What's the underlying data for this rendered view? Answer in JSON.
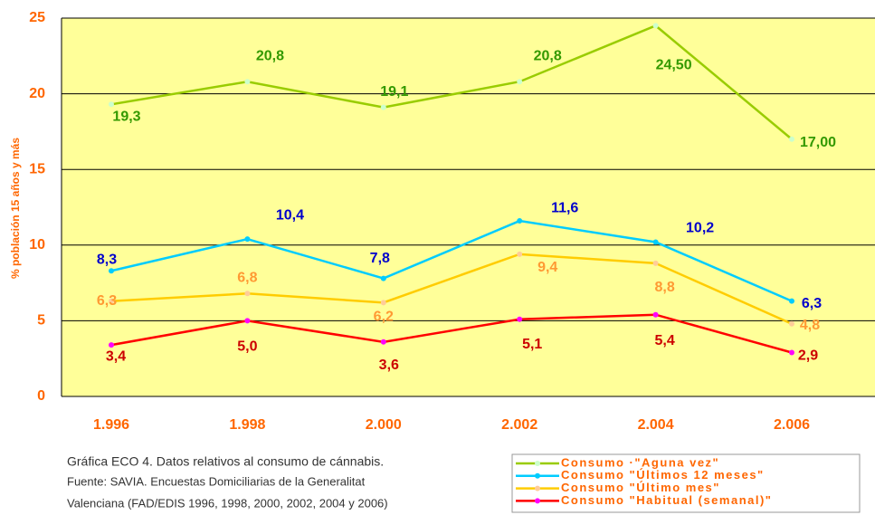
{
  "chart_data": {
    "type": "line",
    "y_label": "% población 15 años y más",
    "categories": [
      "1.996",
      "1.998",
      "2.000",
      "2.002",
      "2.004",
      "2.006"
    ],
    "ylim": [
      0,
      25
    ],
    "yticks": [
      0,
      5,
      10,
      15,
      20,
      25
    ],
    "grid": true,
    "background": "#ffff99",
    "series": [
      {
        "name": "Consumo ·\"Aguna vez\"",
        "color": "#99cc00",
        "marker_color": "#ccffcc",
        "label_color": "#339900",
        "values": [
          19.3,
          20.8,
          19.1,
          20.8,
          24.5,
          17
        ],
        "value_labels": [
          "19,3",
          "20,8",
          "19,1",
          "20,8",
          "24,50",
          "17,00"
        ]
      },
      {
        "name": "Consumo \"Últimos 12 meses\"",
        "color": "#00ccff",
        "marker_color": "#00ccff",
        "label_color": "#0000cc",
        "values": [
          8.3,
          10.4,
          7.8,
          11.6,
          10.2,
          6.3
        ],
        "value_labels": [
          "8,3",
          "10,4",
          "7,8",
          "11,6",
          "10,2",
          "6,3"
        ]
      },
      {
        "name": "Consumo \"Último mes\"",
        "color": "#ffcc00",
        "marker_color": "#ffcc99",
        "label_color": "#ff9933",
        "values": [
          6.3,
          6.8,
          6.2,
          9.4,
          8.8,
          4.8
        ],
        "value_labels": [
          "6,3",
          "6,8",
          "6,2",
          "9,4",
          "8,8",
          "4,8"
        ]
      },
      {
        "name": "Consumo \"Habitual (semanal)\"",
        "color": "#ff0000",
        "marker_color": "#ff00ff",
        "label_color": "#cc0000",
        "values": [
          3.4,
          5.0,
          3.6,
          5.1,
          5.4,
          2.9
        ],
        "value_labels": [
          "3,4",
          "5,0",
          "3,6",
          "5,1",
          "5,4",
          "2,9"
        ]
      }
    ],
    "caption": [
      "Gráfica ECO 4. Datos relativos al consumo de cánnabis.",
      "Fuente: SAVIA. Encuestas Domiciliarias de la Generalitat",
      "Valenciana (FAD/EDIS 1996, 1998, 2000, 2002, 2004 y 2006)"
    ]
  }
}
